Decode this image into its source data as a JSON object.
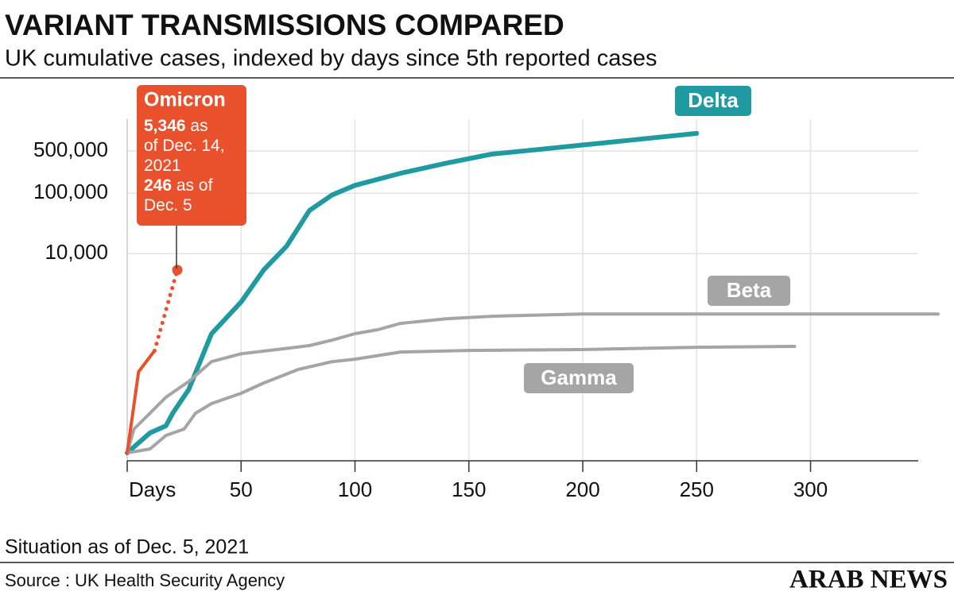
{
  "chart_data": {
    "type": "line",
    "title": "VARIANT TRANSMISSIONS COMPARED",
    "subtitle": "UK cumulative cases, indexed by days since 5th reported cases",
    "ylog": true,
    "grid": true,
    "xlim": [
      0,
      356
    ],
    "ylim": [
      5,
      3000000
    ],
    "xticks": [
      {
        "value": 0,
        "label": "Days"
      },
      50,
      100,
      150,
      200,
      250,
      300
    ],
    "yticks": [
      {
        "value": 10000,
        "label": "10,000"
      },
      {
        "value": 100000,
        "label": "100,000"
      },
      {
        "value": 500000,
        "label": "500,000"
      }
    ],
    "series": [
      {
        "name": "Delta",
        "color": "#1f9aa0",
        "x": [
          0,
          10,
          17,
          20,
          27,
          37,
          50,
          60,
          70,
          80,
          90,
          100,
          120,
          140,
          160,
          180,
          200,
          220,
          250
        ],
        "values": [
          5,
          10.7,
          14,
          22.7,
          56,
          468,
          1580,
          5400,
          13300,
          51700,
          93800,
          135000,
          214000,
          315000,
          445000,
          529000,
          630000,
          750000,
          980000
        ]
      },
      {
        "name": "Beta",
        "color": "#a5a5a5",
        "x": [
          0,
          3,
          10,
          17,
          27,
          37,
          50,
          70,
          80,
          90,
          100,
          110,
          120,
          140,
          160,
          200,
          356
        ],
        "values": [
          5,
          12.4,
          22.7,
          41.7,
          76,
          162,
          219,
          269,
          299,
          369,
          471,
          549,
          697,
          834,
          914,
          1000,
          1000
        ]
      },
      {
        "name": "Gamma",
        "color": "#a5a5a5",
        "x": [
          0,
          10,
          17,
          25,
          30,
          37,
          50,
          60,
          75,
          90,
          100,
          120,
          150,
          200,
          250,
          293
        ],
        "values": [
          5,
          5.8,
          9.7,
          12.4,
          22.7,
          32.7,
          48.5,
          72,
          120,
          162,
          178,
          234,
          249,
          257,
          281,
          290
        ]
      },
      {
        "color": "#e9512d",
        "x": [
          0,
          5,
          12
        ],
        "values": [
          5,
          110,
          246
        ]
      },
      {
        "color": "#e9512d",
        "style": "dotted",
        "end_dot": true,
        "x": [
          12,
          22
        ],
        "values": [
          246,
          5346
        ]
      }
    ],
    "annotation": {
      "title": "Omicron",
      "lines": [
        [
          "5,346",
          " as"
        ],
        [
          "of Dec. 14,"
        ],
        [
          "2021"
        ],
        [
          "246",
          " as of"
        ],
        [
          "Dec. 5"
        ]
      ]
    },
    "note": "Situation as of Dec. 5, 2021",
    "source": "Source : UK Health Security Agency",
    "brand": "ARAB NEWS"
  }
}
